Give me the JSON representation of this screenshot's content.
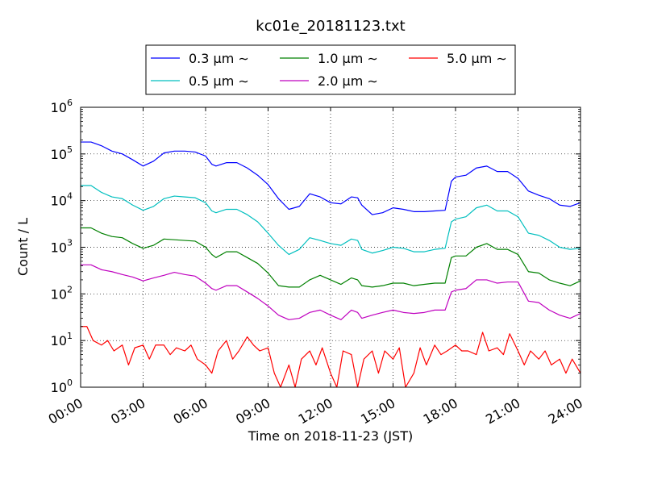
{
  "chart_data": {
    "type": "line",
    "title": "kc01e_20181123.txt",
    "xlabel": "Time on 2018-11-23 (JST)",
    "ylabel": "Count / L",
    "x_ticks": [
      "00:00",
      "03:00",
      "06:00",
      "09:00",
      "12:00",
      "15:00",
      "18:00",
      "21:00",
      "24:00"
    ],
    "xlim_hours": [
      0,
      24
    ],
    "y_scale": "log",
    "ylim": [
      1,
      1000000
    ],
    "y_ticks": [
      {
        "base": "10",
        "exp": "0"
      },
      {
        "base": "10",
        "exp": "1"
      },
      {
        "base": "10",
        "exp": "2"
      },
      {
        "base": "10",
        "exp": "3"
      },
      {
        "base": "10",
        "exp": "4"
      },
      {
        "base": "10",
        "exp": "5"
      },
      {
        "base": "10",
        "exp": "6"
      }
    ],
    "grid": true,
    "legend_placement": "top-center, above plot",
    "series": [
      {
        "name": "0.3 μm ∼",
        "color": "#0000ff",
        "points": [
          [
            0,
            180000
          ],
          [
            0.5,
            180000
          ],
          [
            1,
            150000
          ],
          [
            1.5,
            115000
          ],
          [
            2,
            100000
          ],
          [
            2.5,
            75000
          ],
          [
            3,
            55000
          ],
          [
            3.5,
            70000
          ],
          [
            4,
            105000
          ],
          [
            4.5,
            115000
          ],
          [
            5,
            115000
          ],
          [
            5.5,
            110000
          ],
          [
            6,
            90000
          ],
          [
            6.3,
            60000
          ],
          [
            6.5,
            55000
          ],
          [
            7,
            65000
          ],
          [
            7.5,
            65000
          ],
          [
            8,
            50000
          ],
          [
            8.5,
            35000
          ],
          [
            9,
            22000
          ],
          [
            9.5,
            11000
          ],
          [
            10,
            6500
          ],
          [
            10.5,
            7500
          ],
          [
            11,
            14000
          ],
          [
            11.5,
            12000
          ],
          [
            12,
            9000
          ],
          [
            12.5,
            8500
          ],
          [
            13,
            12000
          ],
          [
            13.3,
            11500
          ],
          [
            13.5,
            8000
          ],
          [
            14,
            5000
          ],
          [
            14.5,
            5500
          ],
          [
            15,
            7000
          ],
          [
            15.5,
            6500
          ],
          [
            16,
            5800
          ],
          [
            16.5,
            5800
          ],
          [
            17,
            6000
          ],
          [
            17.5,
            6200
          ],
          [
            17.8,
            26000
          ],
          [
            18,
            32000
          ],
          [
            18.5,
            35000
          ],
          [
            19,
            50000
          ],
          [
            19.5,
            55000
          ],
          [
            20,
            42000
          ],
          [
            20.5,
            42000
          ],
          [
            21,
            30000
          ],
          [
            21.5,
            16000
          ],
          [
            22,
            13000
          ],
          [
            22.5,
            11000
          ],
          [
            23,
            8000
          ],
          [
            23.5,
            7500
          ],
          [
            24,
            9000
          ]
        ]
      },
      {
        "name": "0.5 μm ∼",
        "color": "#00bfbf",
        "points": [
          [
            0,
            21000
          ],
          [
            0.5,
            21000
          ],
          [
            1,
            15000
          ],
          [
            1.5,
            12000
          ],
          [
            2,
            11000
          ],
          [
            2.5,
            8000
          ],
          [
            3,
            6200
          ],
          [
            3.5,
            7500
          ],
          [
            4,
            11000
          ],
          [
            4.5,
            12500
          ],
          [
            5,
            12000
          ],
          [
            5.5,
            11500
          ],
          [
            6,
            9000
          ],
          [
            6.3,
            6000
          ],
          [
            6.5,
            5500
          ],
          [
            7,
            6500
          ],
          [
            7.5,
            6500
          ],
          [
            8,
            5000
          ],
          [
            8.5,
            3500
          ],
          [
            9,
            2000
          ],
          [
            9.5,
            1100
          ],
          [
            10,
            700
          ],
          [
            10.5,
            900
          ],
          [
            11,
            1600
          ],
          [
            11.5,
            1400
          ],
          [
            12,
            1200
          ],
          [
            12.5,
            1100
          ],
          [
            13,
            1500
          ],
          [
            13.3,
            1400
          ],
          [
            13.5,
            900
          ],
          [
            14,
            750
          ],
          [
            14.5,
            850
          ],
          [
            15,
            1000
          ],
          [
            15.5,
            950
          ],
          [
            16,
            800
          ],
          [
            16.5,
            800
          ],
          [
            17,
            900
          ],
          [
            17.5,
            950
          ],
          [
            17.8,
            3500
          ],
          [
            18,
            4000
          ],
          [
            18.5,
            4500
          ],
          [
            19,
            7000
          ],
          [
            19.5,
            8000
          ],
          [
            20,
            6000
          ],
          [
            20.5,
            6000
          ],
          [
            21,
            4500
          ],
          [
            21.5,
            2000
          ],
          [
            22,
            1800
          ],
          [
            22.5,
            1400
          ],
          [
            23,
            1000
          ],
          [
            23.5,
            900
          ],
          [
            24,
            950
          ]
        ]
      },
      {
        "name": "1.0 μm ∼",
        "color": "#008000",
        "points": [
          [
            0,
            2600
          ],
          [
            0.5,
            2600
          ],
          [
            1,
            2000
          ],
          [
            1.5,
            1700
          ],
          [
            2,
            1600
          ],
          [
            2.5,
            1200
          ],
          [
            3,
            950
          ],
          [
            3.5,
            1100
          ],
          [
            4,
            1500
          ],
          [
            4.5,
            1450
          ],
          [
            5,
            1400
          ],
          [
            5.5,
            1350
          ],
          [
            6,
            1000
          ],
          [
            6.3,
            700
          ],
          [
            6.5,
            600
          ],
          [
            7,
            800
          ],
          [
            7.5,
            800
          ],
          [
            8,
            600
          ],
          [
            8.5,
            450
          ],
          [
            9,
            280
          ],
          [
            9.5,
            150
          ],
          [
            10,
            140
          ],
          [
            10.5,
            140
          ],
          [
            11,
            200
          ],
          [
            11.5,
            250
          ],
          [
            12,
            200
          ],
          [
            12.5,
            160
          ],
          [
            13,
            220
          ],
          [
            13.3,
            200
          ],
          [
            13.5,
            150
          ],
          [
            14,
            140
          ],
          [
            14.5,
            150
          ],
          [
            15,
            170
          ],
          [
            15.5,
            170
          ],
          [
            16,
            150
          ],
          [
            16.5,
            160
          ],
          [
            17,
            170
          ],
          [
            17.5,
            170
          ],
          [
            17.8,
            600
          ],
          [
            18,
            650
          ],
          [
            18.5,
            650
          ],
          [
            19,
            1000
          ],
          [
            19.5,
            1200
          ],
          [
            20,
            900
          ],
          [
            20.5,
            900
          ],
          [
            21,
            700
          ],
          [
            21.5,
            300
          ],
          [
            22,
            280
          ],
          [
            22.5,
            200
          ],
          [
            23,
            170
          ],
          [
            23.5,
            150
          ],
          [
            24,
            190
          ]
        ]
      },
      {
        "name": "2.0 μm ∼",
        "color": "#bf00bf",
        "points": [
          [
            0,
            420
          ],
          [
            0.5,
            420
          ],
          [
            1,
            330
          ],
          [
            1.5,
            300
          ],
          [
            2,
            260
          ],
          [
            2.5,
            230
          ],
          [
            3,
            190
          ],
          [
            3.5,
            220
          ],
          [
            4,
            250
          ],
          [
            4.5,
            290
          ],
          [
            5,
            260
          ],
          [
            5.5,
            240
          ],
          [
            6,
            170
          ],
          [
            6.3,
            130
          ],
          [
            6.5,
            120
          ],
          [
            7,
            150
          ],
          [
            7.5,
            150
          ],
          [
            8,
            110
          ],
          [
            8.5,
            80
          ],
          [
            9,
            55
          ],
          [
            9.5,
            35
          ],
          [
            10,
            28
          ],
          [
            10.5,
            30
          ],
          [
            11,
            40
          ],
          [
            11.5,
            45
          ],
          [
            12,
            35
          ],
          [
            12.5,
            28
          ],
          [
            13,
            45
          ],
          [
            13.3,
            40
          ],
          [
            13.5,
            30
          ],
          [
            14,
            35
          ],
          [
            14.5,
            40
          ],
          [
            15,
            45
          ],
          [
            15.5,
            40
          ],
          [
            16,
            38
          ],
          [
            16.5,
            40
          ],
          [
            17,
            45
          ],
          [
            17.5,
            45
          ],
          [
            17.8,
            110
          ],
          [
            18,
            120
          ],
          [
            18.5,
            130
          ],
          [
            19,
            200
          ],
          [
            19.5,
            200
          ],
          [
            20,
            170
          ],
          [
            20.5,
            180
          ],
          [
            21,
            180
          ],
          [
            21.5,
            70
          ],
          [
            22,
            65
          ],
          [
            22.5,
            45
          ],
          [
            23,
            35
          ],
          [
            23.5,
            30
          ],
          [
            24,
            38
          ]
        ]
      },
      {
        "name": "5.0 μm ∼",
        "color": "#ff0000",
        "points": [
          [
            0,
            20
          ],
          [
            0.3,
            20
          ],
          [
            0.6,
            10
          ],
          [
            1,
            8
          ],
          [
            1.3,
            10
          ],
          [
            1.6,
            6
          ],
          [
            2,
            8
          ],
          [
            2.3,
            3
          ],
          [
            2.6,
            7
          ],
          [
            3,
            8
          ],
          [
            3.3,
            4
          ],
          [
            3.6,
            8
          ],
          [
            4,
            8
          ],
          [
            4.3,
            5
          ],
          [
            4.6,
            7
          ],
          [
            5,
            6
          ],
          [
            5.3,
            8
          ],
          [
            5.6,
            4
          ],
          [
            6,
            3
          ],
          [
            6.3,
            2
          ],
          [
            6.6,
            6
          ],
          [
            7,
            10
          ],
          [
            7.3,
            4
          ],
          [
            7.6,
            6
          ],
          [
            8,
            12
          ],
          [
            8.3,
            8
          ],
          [
            8.6,
            6
          ],
          [
            9,
            7
          ],
          [
            9.3,
            2
          ],
          [
            9.6,
            1
          ],
          [
            10,
            3
          ],
          [
            10.3,
            1
          ],
          [
            10.6,
            4
          ],
          [
            11,
            6
          ],
          [
            11.3,
            3
          ],
          [
            11.6,
            7
          ],
          [
            12,
            2
          ],
          [
            12.3,
            1
          ],
          [
            12.6,
            6
          ],
          [
            13,
            5
          ],
          [
            13.3,
            1
          ],
          [
            13.6,
            4
          ],
          [
            14,
            6
          ],
          [
            14.3,
            2
          ],
          [
            14.6,
            6
          ],
          [
            15,
            4
          ],
          [
            15.3,
            7
          ],
          [
            15.6,
            1
          ],
          [
            16,
            2
          ],
          [
            16.3,
            7
          ],
          [
            16.6,
            3
          ],
          [
            17,
            8
          ],
          [
            17.3,
            5
          ],
          [
            17.6,
            6
          ],
          [
            18,
            8
          ],
          [
            18.3,
            6
          ],
          [
            18.6,
            6
          ],
          [
            19,
            5
          ],
          [
            19.3,
            15
          ],
          [
            19.6,
            6
          ],
          [
            20,
            7
          ],
          [
            20.3,
            5
          ],
          [
            20.6,
            14
          ],
          [
            21,
            6
          ],
          [
            21.3,
            3
          ],
          [
            21.6,
            6
          ],
          [
            22,
            4
          ],
          [
            22.3,
            6
          ],
          [
            22.6,
            3
          ],
          [
            23,
            4
          ],
          [
            23.3,
            2
          ],
          [
            23.6,
            4
          ],
          [
            24,
            2
          ]
        ]
      }
    ]
  }
}
